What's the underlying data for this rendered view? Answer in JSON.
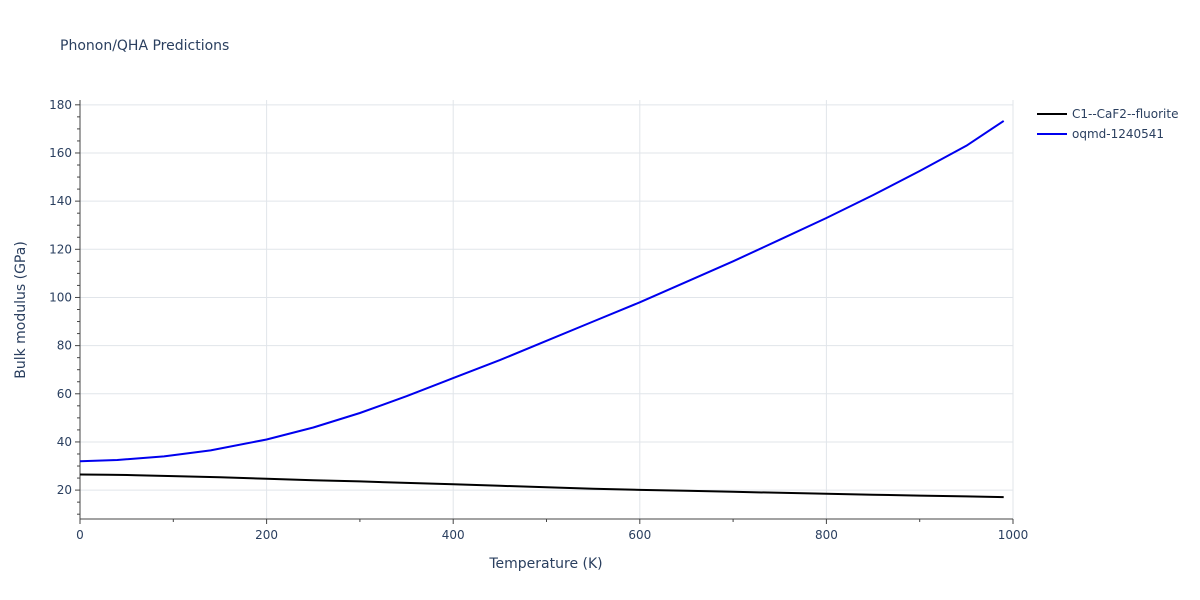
{
  "chart_data": {
    "type": "line",
    "title": "Phonon/QHA Predictions",
    "xlabel": "Temperature (K)",
    "ylabel": "Bulk modulus (GPa)",
    "xlim": [
      0,
      1000
    ],
    "ylim": [
      8,
      182
    ],
    "x_ticks": [
      "0",
      "200",
      "400",
      "600",
      "800",
      "1000"
    ],
    "y_ticks": [
      "20",
      "40",
      "60",
      "80",
      "100",
      "120",
      "140",
      "160",
      "180"
    ],
    "grid": true,
    "legend_position": "top-right",
    "series": [
      {
        "name": "C1--CaF2--fluorite",
        "color": "#000000",
        "x": [
          0,
          30,
          60,
          100,
          150,
          200,
          250,
          300,
          350,
          400,
          450,
          500,
          550,
          600,
          650,
          700,
          750,
          800,
          850,
          900,
          950,
          990
        ],
        "y": [
          26.5,
          26.4,
          26.2,
          25.8,
          25.3,
          24.7,
          24.1,
          23.6,
          23.0,
          22.4,
          21.8,
          21.2,
          20.6,
          20.1,
          19.7,
          19.3,
          18.9,
          18.5,
          18.1,
          17.7,
          17.4,
          17.1
        ]
      },
      {
        "name": "oqmd-1240541",
        "color": "#0000ee",
        "x": [
          0,
          40,
          90,
          140,
          200,
          250,
          300,
          350,
          400,
          450,
          500,
          550,
          600,
          650,
          700,
          750,
          800,
          850,
          900,
          950,
          990
        ],
        "y": [
          32.0,
          32.5,
          34.0,
          36.5,
          41.0,
          46.0,
          52.0,
          59.0,
          66.5,
          74.0,
          82.0,
          90.0,
          98.0,
          106.5,
          115.0,
          124.0,
          133.0,
          142.5,
          152.5,
          163.0,
          173.3
        ]
      }
    ]
  }
}
